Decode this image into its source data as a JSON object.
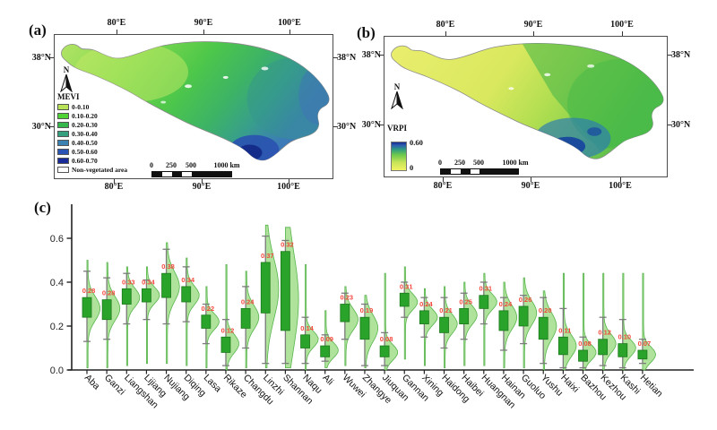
{
  "panel_a": {
    "label": "(a)",
    "legend": {
      "title": "MEVI",
      "items": [
        {
          "label": "0-0.10",
          "color": "#b9e356"
        },
        {
          "label": "0.10-0.20",
          "color": "#4ed335"
        },
        {
          "label": "0.20-0.30",
          "color": "#35b74b"
        },
        {
          "label": "0.30-0.40",
          "color": "#35a07d"
        },
        {
          "label": "0.40-0.50",
          "color": "#3b81b1"
        },
        {
          "label": "0.50-0.60",
          "color": "#2b52b5"
        },
        {
          "label": "0.60-0.70",
          "color": "#192a99"
        },
        {
          "label": "Non-vegetated area",
          "color": "#ffffff"
        }
      ]
    },
    "top_ticks": [
      "80°E",
      "90°E",
      "100°E"
    ],
    "bottom_ticks": [
      "80°E",
      "90°E",
      "100°E"
    ],
    "left_ticks": [
      "38°N",
      "30°N"
    ],
    "right_ticks": [
      "38°N",
      "30°N"
    ],
    "north_label": "N",
    "scalebar": {
      "zero": "0",
      "l250": "250",
      "l500": "500",
      "l1000": "1000 km"
    }
  },
  "panel_b": {
    "label": "(b)",
    "legend": {
      "title": "VRPI",
      "max": "0.60",
      "min": "0"
    },
    "top_ticks": [
      "80°E",
      "90°E",
      "100°E"
    ],
    "bottom_ticks": [
      "80°E",
      "90°E",
      "100°E"
    ],
    "left_ticks": [
      "38°N",
      "30°N"
    ],
    "right_ticks": [
      "38°N",
      "30°N"
    ],
    "north_label": "N",
    "scalebar": {
      "zero": "0",
      "l250": "250",
      "l500": "500",
      "l1000": "1000 km"
    }
  },
  "panel_c": {
    "label": "(c)"
  },
  "chart_data": {
    "type": "violin-box",
    "title": "",
    "xlabel": "",
    "ylabel": "",
    "ylim": [
      0,
      0.75
    ],
    "y_ticks": [
      "0.0",
      "0.2",
      "0.4",
      "0.6"
    ],
    "grid": false,
    "colors": {
      "box": "#2aa32a",
      "box_edge": "#1c7a1c",
      "violin": "#9bdc82",
      "violin_edge": "#57b44c",
      "whisker": "#7c7c7c",
      "value_label": "#f4483d",
      "axis": "#222222"
    },
    "regions": [
      {
        "name": "Aba",
        "median": 0.28,
        "q1": 0.24,
        "q3": 0.33,
        "wlo": 0.13,
        "whi": 0.45,
        "vtop": 0.5,
        "vbot": 0.01
      },
      {
        "name": "Ganzi",
        "median": 0.28,
        "q1": 0.23,
        "q3": 0.32,
        "wlo": 0.14,
        "whi": 0.42,
        "vtop": 0.49,
        "vbot": 0.01
      },
      {
        "name": "Liangshan",
        "median": 0.33,
        "q1": 0.3,
        "q3": 0.37,
        "wlo": 0.21,
        "whi": 0.44,
        "vtop": 0.47,
        "vbot": 0.02
      },
      {
        "name": "Lijiang",
        "median": 0.34,
        "q1": 0.31,
        "q3": 0.37,
        "wlo": 0.23,
        "whi": 0.41,
        "vtop": 0.47,
        "vbot": 0.03
      },
      {
        "name": "Nujiang",
        "median": 0.38,
        "q1": 0.33,
        "q3": 0.44,
        "wlo": 0.21,
        "whi": 0.55,
        "vtop": 0.58,
        "vbot": 0.03
      },
      {
        "name": "Diqing",
        "median": 0.34,
        "q1": 0.31,
        "q3": 0.38,
        "wlo": 0.22,
        "whi": 0.47,
        "vtop": 0.51,
        "vbot": 0.02
      },
      {
        "name": "Lasa",
        "median": 0.22,
        "q1": 0.19,
        "q3": 0.25,
        "wlo": 0.12,
        "whi": 0.3,
        "vtop": 0.38,
        "vbot": 0.01
      },
      {
        "name": "Rikaze",
        "median": 0.12,
        "q1": 0.08,
        "q3": 0.15,
        "wlo": 0.02,
        "whi": 0.23,
        "vtop": 0.48,
        "vbot": 0.0
      },
      {
        "name": "Changdu",
        "median": 0.24,
        "q1": 0.19,
        "q3": 0.28,
        "wlo": 0.1,
        "whi": 0.38,
        "vtop": 0.45,
        "vbot": 0.01
      },
      {
        "name": "Linzhi",
        "median": 0.37,
        "q1": 0.26,
        "q3": 0.49,
        "wlo": 0.03,
        "whi": 0.61,
        "vtop": 0.66,
        "vbot": 0.01
      },
      {
        "name": "Shannan",
        "median": 0.32,
        "q1": 0.18,
        "q3": 0.54,
        "wlo": 0.03,
        "whi": 0.59,
        "vtop": 0.65,
        "vbot": 0.01
      },
      {
        "name": "Naqu",
        "median": 0.14,
        "q1": 0.1,
        "q3": 0.16,
        "wlo": 0.03,
        "whi": 0.24,
        "vtop": 0.48,
        "vbot": 0.0
      },
      {
        "name": "Ali",
        "median": 0.09,
        "q1": 0.06,
        "q3": 0.11,
        "wlo": 0.04,
        "whi": 0.16,
        "vtop": 0.27,
        "vbot": 0.01
      },
      {
        "name": "Wuwei",
        "median": 0.23,
        "q1": 0.22,
        "q3": 0.3,
        "wlo": 0.14,
        "whi": 0.35,
        "vtop": 0.38,
        "vbot": 0.02
      },
      {
        "name": "Zhangye",
        "median": 0.19,
        "q1": 0.14,
        "q3": 0.24,
        "wlo": 0.02,
        "whi": 0.3,
        "vtop": 0.34,
        "vbot": 0.01
      },
      {
        "name": "Jiuquan",
        "median": 0.08,
        "q1": 0.06,
        "q3": 0.11,
        "wlo": 0.02,
        "whi": 0.17,
        "vtop": 0.44,
        "vbot": 0.0
      },
      {
        "name": "Gannan",
        "median": 0.31,
        "q1": 0.29,
        "q3": 0.35,
        "wlo": 0.24,
        "whi": 0.4,
        "vtop": 0.47,
        "vbot": 0.05
      },
      {
        "name": "Xining",
        "median": 0.24,
        "q1": 0.21,
        "q3": 0.27,
        "wlo": 0.15,
        "whi": 0.33,
        "vtop": 0.37,
        "vbot": 0.02
      },
      {
        "name": "Haidong",
        "median": 0.21,
        "q1": 0.17,
        "q3": 0.24,
        "wlo": 0.1,
        "whi": 0.33,
        "vtop": 0.38,
        "vbot": 0.01
      },
      {
        "name": "Haibei",
        "median": 0.25,
        "q1": 0.21,
        "q3": 0.28,
        "wlo": 0.14,
        "whi": 0.35,
        "vtop": 0.4,
        "vbot": 0.02
      },
      {
        "name": "Huangnan",
        "median": 0.31,
        "q1": 0.28,
        "q3": 0.34,
        "wlo": 0.21,
        "whi": 0.4,
        "vtop": 0.44,
        "vbot": 0.02
      },
      {
        "name": "Hainan",
        "median": 0.24,
        "q1": 0.18,
        "q3": 0.27,
        "wlo": 0.09,
        "whi": 0.33,
        "vtop": 0.4,
        "vbot": 0.01
      },
      {
        "name": "Guoluo",
        "median": 0.26,
        "q1": 0.2,
        "q3": 0.29,
        "wlo": 0.12,
        "whi": 0.34,
        "vtop": 0.42,
        "vbot": 0.01
      },
      {
        "name": "Yushu",
        "median": 0.2,
        "q1": 0.14,
        "q3": 0.24,
        "wlo": 0.03,
        "whi": 0.33,
        "vtop": 0.36,
        "vbot": 0.0
      },
      {
        "name": "Haixi",
        "median": 0.11,
        "q1": 0.07,
        "q3": 0.15,
        "wlo": 0.01,
        "whi": 0.28,
        "vtop": 0.44,
        "vbot": 0.0
      },
      {
        "name": "Bazhou",
        "median": 0.08,
        "q1": 0.04,
        "q3": 0.09,
        "wlo": 0.01,
        "whi": 0.15,
        "vtop": 0.44,
        "vbot": 0.0
      },
      {
        "name": "Kezhou",
        "median": 0.12,
        "q1": 0.07,
        "q3": 0.14,
        "wlo": 0.02,
        "whi": 0.24,
        "vtop": 0.44,
        "vbot": 0.0
      },
      {
        "name": "Kashi",
        "median": 0.1,
        "q1": 0.06,
        "q3": 0.12,
        "wlo": 0.01,
        "whi": 0.23,
        "vtop": 0.44,
        "vbot": 0.0
      },
      {
        "name": "Hetian",
        "median": 0.07,
        "q1": 0.05,
        "q3": 0.09,
        "wlo": 0.03,
        "whi": 0.14,
        "vtop": 0.44,
        "vbot": 0.0
      }
    ]
  }
}
